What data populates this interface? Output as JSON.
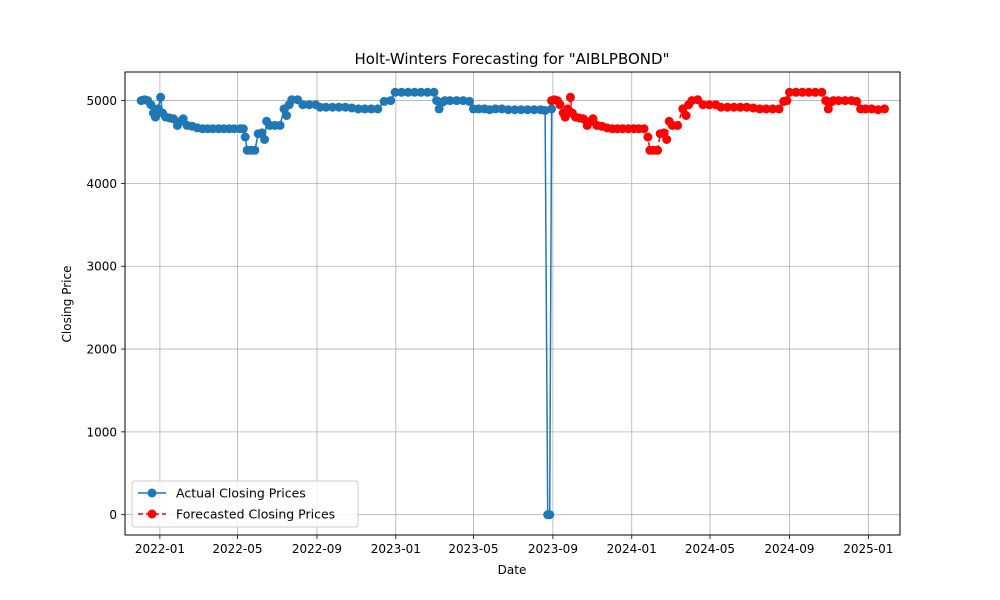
{
  "chart_data": {
    "type": "line",
    "title": "Holt-Winters Forecasting for \"AIBLPBOND\"",
    "xlabel": "Date",
    "ylabel": "Closing Price",
    "x_range": [
      "2021-11-08",
      "2025-02-19"
    ],
    "ylim": [
      -245,
      5345
    ],
    "x_ticks": [
      {
        "date": "2022-01-01",
        "label": "2022-01"
      },
      {
        "date": "2022-05-01",
        "label": "2022-05"
      },
      {
        "date": "2022-09-01",
        "label": "2022-09"
      },
      {
        "date": "2023-01-01",
        "label": "2023-01"
      },
      {
        "date": "2023-05-01",
        "label": "2023-05"
      },
      {
        "date": "2023-09-01",
        "label": "2023-09"
      },
      {
        "date": "2024-01-01",
        "label": "2024-01"
      },
      {
        "date": "2024-05-01",
        "label": "2024-05"
      },
      {
        "date": "2024-09-01",
        "label": "2024-09"
      },
      {
        "date": "2025-01-01",
        "label": "2025-01"
      }
    ],
    "y_ticks": [
      {
        "value": 0,
        "label": "0"
      },
      {
        "value": 1000,
        "label": "1000"
      },
      {
        "value": 2000,
        "label": "2000"
      },
      {
        "value": 3000,
        "label": "3000"
      },
      {
        "value": 4000,
        "label": "4000"
      },
      {
        "value": 5000,
        "label": "5000"
      }
    ],
    "grid": true,
    "legend_position": "bottom-left",
    "series": [
      {
        "name": "Actual Closing Prices",
        "color": "#1f77b4",
        "line_style": "solid",
        "marker": "circle",
        "points": [
          [
            "2021-12-03",
            5000
          ],
          [
            "2021-12-08",
            5010
          ],
          [
            "2021-12-13",
            5000
          ],
          [
            "2021-12-18",
            4950
          ],
          [
            "2021-12-22",
            4850
          ],
          [
            "2021-12-25",
            4800
          ],
          [
            "2021-12-29",
            4900
          ],
          [
            "2022-01-02",
            5040
          ],
          [
            "2022-01-05",
            4850
          ],
          [
            "2022-01-10",
            4800
          ],
          [
            "2022-01-16",
            4790
          ],
          [
            "2022-01-22",
            4780
          ],
          [
            "2022-01-28",
            4700
          ],
          [
            "2022-02-02",
            4750
          ],
          [
            "2022-02-06",
            4780
          ],
          [
            "2022-02-12",
            4700
          ],
          [
            "2022-02-20",
            4690
          ],
          [
            "2022-02-28",
            4670
          ],
          [
            "2022-03-08",
            4660
          ],
          [
            "2022-03-16",
            4660
          ],
          [
            "2022-03-24",
            4660
          ],
          [
            "2022-04-02",
            4660
          ],
          [
            "2022-04-10",
            4660
          ],
          [
            "2022-04-18",
            4660
          ],
          [
            "2022-04-26",
            4660
          ],
          [
            "2022-05-05",
            4660
          ],
          [
            "2022-05-10",
            4660
          ],
          [
            "2022-05-13",
            4560
          ],
          [
            "2022-05-16",
            4400
          ],
          [
            "2022-05-22",
            4400
          ],
          [
            "2022-05-28",
            4400
          ],
          [
            "2022-06-02",
            4600
          ],
          [
            "2022-06-08",
            4610
          ],
          [
            "2022-06-12",
            4530
          ],
          [
            "2022-06-15",
            4750
          ],
          [
            "2022-06-20",
            4700
          ],
          [
            "2022-06-28",
            4700
          ],
          [
            "2022-07-06",
            4700
          ],
          [
            "2022-07-12",
            4900
          ],
          [
            "2022-07-16",
            4820
          ],
          [
            "2022-07-20",
            4950
          ],
          [
            "2022-07-24",
            5010
          ],
          [
            "2022-08-02",
            5010
          ],
          [
            "2022-08-10",
            4950
          ],
          [
            "2022-08-20",
            4950
          ],
          [
            "2022-08-30",
            4950
          ],
          [
            "2022-09-06",
            4920
          ],
          [
            "2022-09-15",
            4920
          ],
          [
            "2022-09-25",
            4920
          ],
          [
            "2022-10-05",
            4920
          ],
          [
            "2022-10-15",
            4920
          ],
          [
            "2022-10-25",
            4910
          ],
          [
            "2022-11-04",
            4900
          ],
          [
            "2022-11-14",
            4900
          ],
          [
            "2022-11-24",
            4900
          ],
          [
            "2022-12-04",
            4900
          ],
          [
            "2022-12-14",
            4990
          ],
          [
            "2022-12-24",
            5000
          ],
          [
            "2022-12-31",
            5100
          ],
          [
            "2023-01-10",
            5100
          ],
          [
            "2023-01-20",
            5100
          ],
          [
            "2023-01-30",
            5100
          ],
          [
            "2023-02-09",
            5100
          ],
          [
            "2023-02-19",
            5100
          ],
          [
            "2023-03-01",
            5100
          ],
          [
            "2023-03-05",
            5000
          ],
          [
            "2023-03-09",
            4900
          ],
          [
            "2023-03-14",
            4980
          ],
          [
            "2023-03-18",
            5000
          ],
          [
            "2023-03-26",
            5000
          ],
          [
            "2023-04-05",
            5000
          ],
          [
            "2023-04-15",
            5000
          ],
          [
            "2023-04-25",
            4990
          ],
          [
            "2023-05-01",
            4900
          ],
          [
            "2023-05-09",
            4900
          ],
          [
            "2023-05-18",
            4900
          ],
          [
            "2023-05-26",
            4890
          ],
          [
            "2023-06-04",
            4900
          ],
          [
            "2023-06-14",
            4900
          ],
          [
            "2023-06-24",
            4890
          ],
          [
            "2023-07-04",
            4890
          ],
          [
            "2023-07-14",
            4890
          ],
          [
            "2023-07-24",
            4890
          ],
          [
            "2023-08-03",
            4890
          ],
          [
            "2023-08-13",
            4890
          ],
          [
            "2023-08-20",
            4880
          ],
          [
            "2023-08-24",
            0
          ],
          [
            "2023-08-27",
            0
          ],
          [
            "2023-08-30",
            4900
          ]
        ]
      },
      {
        "name": "Forecasted Closing Prices",
        "color": "#ff0000",
        "line_style": "dashed",
        "marker": "circle",
        "points": [
          [
            "2023-08-30",
            5000
          ],
          [
            "2023-09-03",
            5010
          ],
          [
            "2023-09-08",
            5000
          ],
          [
            "2023-09-12",
            4950
          ],
          [
            "2023-09-17",
            4850
          ],
          [
            "2023-09-20",
            4800
          ],
          [
            "2023-09-24",
            4900
          ],
          [
            "2023-09-28",
            5040
          ],
          [
            "2023-10-01",
            4850
          ],
          [
            "2023-10-06",
            4800
          ],
          [
            "2023-10-12",
            4790
          ],
          [
            "2023-10-18",
            4780
          ],
          [
            "2023-10-24",
            4700
          ],
          [
            "2023-10-29",
            4750
          ],
          [
            "2023-11-02",
            4780
          ],
          [
            "2023-11-08",
            4700
          ],
          [
            "2023-11-16",
            4690
          ],
          [
            "2023-11-24",
            4670
          ],
          [
            "2023-12-02",
            4660
          ],
          [
            "2023-12-10",
            4660
          ],
          [
            "2023-12-18",
            4660
          ],
          [
            "2023-12-27",
            4660
          ],
          [
            "2024-01-04",
            4660
          ],
          [
            "2024-01-12",
            4660
          ],
          [
            "2024-01-20",
            4660
          ],
          [
            "2024-01-26",
            4560
          ],
          [
            "2024-01-29",
            4400
          ],
          [
            "2024-02-04",
            4400
          ],
          [
            "2024-02-10",
            4400
          ],
          [
            "2024-02-14",
            4600
          ],
          [
            "2024-02-20",
            4610
          ],
          [
            "2024-02-24",
            4530
          ],
          [
            "2024-02-28",
            4750
          ],
          [
            "2024-03-04",
            4700
          ],
          [
            "2024-03-12",
            4700
          ],
          [
            "2024-03-20",
            4900
          ],
          [
            "2024-03-25",
            4820
          ],
          [
            "2024-03-29",
            4950
          ],
          [
            "2024-04-03",
            5000
          ],
          [
            "2024-04-12",
            5010
          ],
          [
            "2024-04-20",
            4950
          ],
          [
            "2024-04-30",
            4950
          ],
          [
            "2024-05-10",
            4950
          ],
          [
            "2024-05-18",
            4920
          ],
          [
            "2024-05-28",
            4920
          ],
          [
            "2024-06-07",
            4920
          ],
          [
            "2024-06-17",
            4920
          ],
          [
            "2024-06-27",
            4920
          ],
          [
            "2024-07-07",
            4910
          ],
          [
            "2024-07-17",
            4900
          ],
          [
            "2024-07-27",
            4900
          ],
          [
            "2024-08-06",
            4900
          ],
          [
            "2024-08-16",
            4900
          ],
          [
            "2024-08-23",
            4990
          ],
          [
            "2024-08-28",
            5000
          ],
          [
            "2024-09-01",
            5100
          ],
          [
            "2024-09-11",
            5100
          ],
          [
            "2024-09-21",
            5100
          ],
          [
            "2024-10-01",
            5100
          ],
          [
            "2024-10-11",
            5100
          ],
          [
            "2024-10-21",
            5100
          ],
          [
            "2024-10-27",
            5000
          ],
          [
            "2024-10-31",
            4900
          ],
          [
            "2024-11-04",
            4980
          ],
          [
            "2024-11-08",
            5000
          ],
          [
            "2024-11-16",
            5000
          ],
          [
            "2024-11-26",
            5000
          ],
          [
            "2024-12-06",
            5000
          ],
          [
            "2024-12-14",
            4990
          ],
          [
            "2024-12-20",
            4900
          ],
          [
            "2024-12-28",
            4900
          ],
          [
            "2025-01-06",
            4900
          ],
          [
            "2025-01-16",
            4890
          ],
          [
            "2025-01-26",
            4900
          ]
        ]
      }
    ]
  }
}
